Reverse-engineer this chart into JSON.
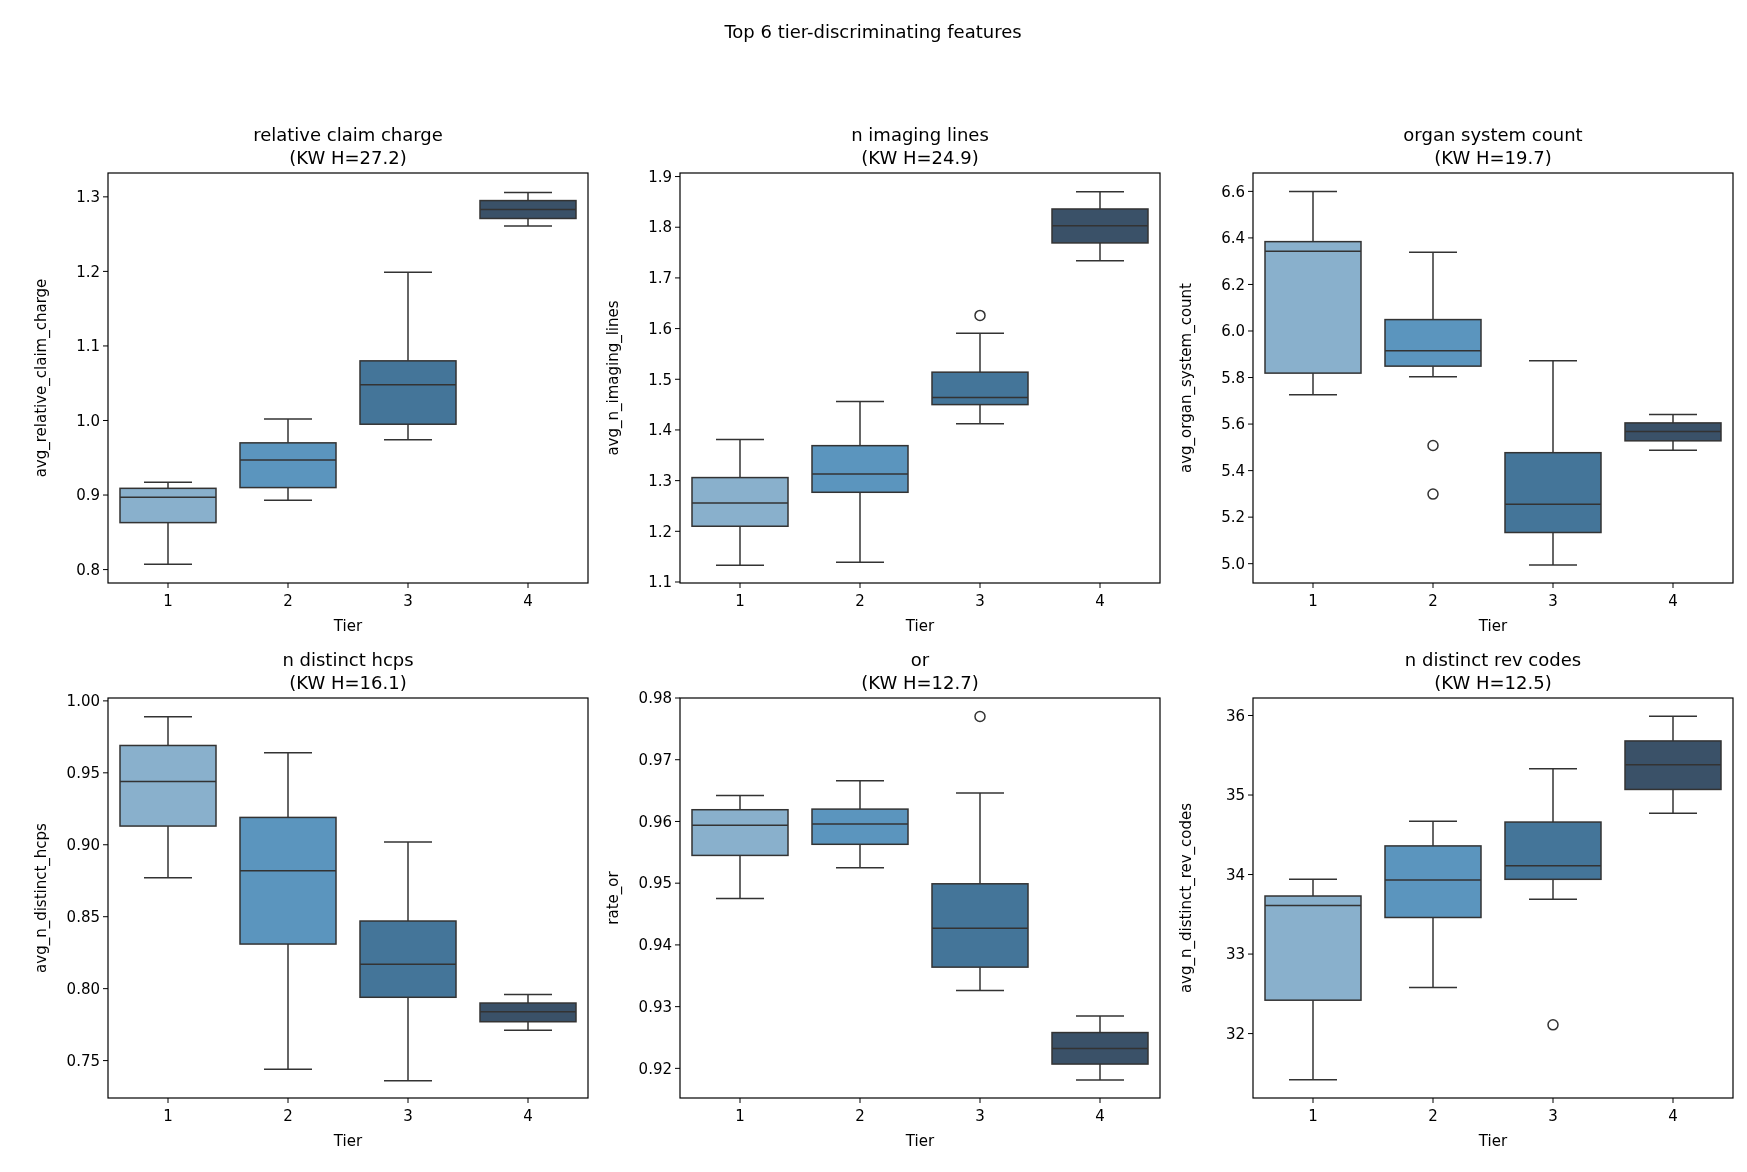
{
  "chart_data": [
    {
      "type": "box",
      "title": "relative claim charge",
      "subtitle": "(KW H=27.2)",
      "xlabel": "Tier",
      "ylabel": "avg_relative_claim_charge",
      "annotations": [
        "Top 6 tier-discriminating features"
      ],
      "categories": [
        "1",
        "2",
        "3",
        "4"
      ],
      "colors": [
        "#89b0cc",
        "#5b95be",
        "#447599",
        "#3a5168"
      ],
      "ylim": [
        0.782,
        1.332
      ],
      "yticks": [
        {
          "value": 0.8,
          "label": "0.8"
        },
        {
          "value": 0.9,
          "label": "0.9"
        },
        {
          "value": 1.0,
          "label": "1.0"
        },
        {
          "value": 1.1,
          "label": "1.1"
        },
        {
          "value": 1.2,
          "label": "1.2"
        },
        {
          "value": 1.3,
          "label": "1.3"
        }
      ],
      "grid": false,
      "boxes": [
        {
          "low": 0.807,
          "q1": 0.863,
          "median": 0.897,
          "q3": 0.909,
          "high": 0.917
        },
        {
          "low": 0.893,
          "q1": 0.91,
          "median": 0.947,
          "q3": 0.97,
          "high": 1.002
        },
        {
          "low": 0.974,
          "q1": 0.995,
          "median": 1.048,
          "q3": 1.08,
          "high": 1.199
        },
        {
          "low": 1.261,
          "q1": 1.271,
          "median": 1.283,
          "q3": 1.295,
          "high": 1.306
        }
      ]
    },
    {
      "type": "box",
      "title": "n imaging lines",
      "subtitle": "(KW H=24.9)",
      "xlabel": "Tier",
      "ylabel": "avg_n_imaging_lines",
      "categories": [
        "1",
        "2",
        "3",
        "4"
      ],
      "colors": [
        "#89b0cc",
        "#5b95be",
        "#447599",
        "#3a5168"
      ],
      "ylim": [
        1.098,
        1.907
      ],
      "yticks": [
        1.1,
        1.2,
        1.3,
        1.4,
        1.5,
        1.6,
        1.7,
        1.8,
        1.9
      ],
      "grid": false,
      "boxes": [
        {
          "low": 1.133,
          "q1": 1.21,
          "median": 1.256,
          "q3": 1.306,
          "high": 1.381
        },
        {
          "low": 1.139,
          "q1": 1.277,
          "median": 1.313,
          "q3": 1.369,
          "high": 1.456
        },
        {
          "low": 1.412,
          "q1": 1.45,
          "median": 1.464,
          "q3": 1.514,
          "high": 1.591,
          "outliers": [
            1.626
          ]
        },
        {
          "low": 1.734,
          "q1": 1.769,
          "median": 1.803,
          "q3": 1.836,
          "high": 1.87
        }
      ]
    },
    {
      "type": "box",
      "title": "organ system count",
      "subtitle": "(KW H=19.7)",
      "xlabel": "Tier",
      "ylabel": "avg_organ_system_count",
      "categories": [
        "1",
        "2",
        "3",
        "4"
      ],
      "colors": [
        "#89b0cc",
        "#5b95be",
        "#447599",
        "#3a5168"
      ],
      "ylim": [
        4.917,
        6.679
      ],
      "yticks": [
        {
          "value": 5.0,
          "label": "5.0"
        },
        {
          "value": 5.2,
          "label": "5.2"
        },
        {
          "value": 5.4,
          "label": "5.4"
        },
        {
          "value": 5.6,
          "label": "5.6"
        },
        {
          "value": 5.8,
          "label": "5.8"
        },
        {
          "value": 6.0,
          "label": "6.0"
        },
        {
          "value": 6.2,
          "label": "6.2"
        },
        {
          "value": 6.4,
          "label": "6.4"
        },
        {
          "value": 6.6,
          "label": "6.6"
        }
      ],
      "grid": false,
      "boxes": [
        {
          "low": 5.726,
          "q1": 5.819,
          "median": 6.343,
          "q3": 6.384,
          "high": 6.6
        },
        {
          "low": 5.803,
          "q1": 5.849,
          "median": 5.915,
          "q3": 6.049,
          "high": 6.338,
          "outliers": [
            5.508,
            5.299
          ]
        },
        {
          "low": 4.994,
          "q1": 5.134,
          "median": 5.255,
          "q3": 5.477,
          "high": 5.872
        },
        {
          "low": 5.487,
          "q1": 5.528,
          "median": 5.568,
          "q3": 5.605,
          "high": 5.641
        }
      ]
    },
    {
      "type": "box",
      "title": "n distinct hcps",
      "subtitle": "(KW H=16.1)",
      "xlabel": "Tier",
      "ylabel": "avg_n_distinct_hcps",
      "categories": [
        "1",
        "2",
        "3",
        "4"
      ],
      "colors": [
        "#89b0cc",
        "#5b95be",
        "#447599",
        "#3a5168"
      ],
      "ylim": [
        0.724,
        1.002
      ],
      "yticks": [
        0.75,
        {
          "value": 0.8,
          "label": "0.80"
        },
        0.85,
        {
          "value": 0.9,
          "label": "0.90"
        },
        0.95,
        {
          "value": 1.0,
          "label": "1.00"
        }
      ],
      "grid": false,
      "boxes": [
        {
          "low": 0.877,
          "q1": 0.913,
          "median": 0.944,
          "q3": 0.969,
          "high": 0.989
        },
        {
          "low": 0.744,
          "q1": 0.831,
          "median": 0.882,
          "q3": 0.919,
          "high": 0.964
        },
        {
          "low": 0.736,
          "q1": 0.794,
          "median": 0.817,
          "q3": 0.847,
          "high": 0.902
        },
        {
          "low": 0.771,
          "q1": 0.777,
          "median": 0.784,
          "q3": 0.79,
          "high": 0.796
        }
      ]
    },
    {
      "type": "box",
      "title": "or",
      "subtitle": "(KW H=12.7)",
      "xlabel": "Tier",
      "ylabel": "rate_or",
      "categories": [
        "1",
        "2",
        "3",
        "4"
      ],
      "colors": [
        "#89b0cc",
        "#5b95be",
        "#447599",
        "#3a5168"
      ],
      "ylim": [
        0.9152,
        0.98
      ],
      "yticks": [
        0.92,
        0.93,
        0.94,
        0.95,
        0.96,
        0.97,
        0.98
      ],
      "grid": false,
      "boxes": [
        {
          "low": 0.9475,
          "q1": 0.9545,
          "median": 0.9594,
          "q3": 0.9619,
          "high": 0.9642
        },
        {
          "low": 0.9525,
          "q1": 0.9563,
          "median": 0.9596,
          "q3": 0.962,
          "high": 0.9666
        },
        {
          "low": 0.9326,
          "q1": 0.9364,
          "median": 0.9427,
          "q3": 0.9499,
          "high": 0.9646,
          "outliers": [
            0.977
          ]
        },
        {
          "low": 0.9181,
          "q1": 0.9207,
          "median": 0.9232,
          "q3": 0.9258,
          "high": 0.9285
        }
      ]
    },
    {
      "type": "box",
      "title": "n distinct rev codes",
      "subtitle": "(KW H=12.5)",
      "xlabel": "Tier",
      "ylabel": "avg_n_distinct_rev_codes",
      "categories": [
        "1",
        "2",
        "3",
        "4"
      ],
      "colors": [
        "#89b0cc",
        "#5b95be",
        "#447599",
        "#3a5168"
      ],
      "ylim": [
        31.19,
        36.22
      ],
      "yticks": [
        32,
        33,
        34,
        35,
        36
      ],
      "grid": false,
      "boxes": [
        {
          "low": 31.42,
          "q1": 32.42,
          "median": 33.61,
          "q3": 33.73,
          "high": 33.94
        },
        {
          "low": 32.58,
          "q1": 33.46,
          "median": 33.93,
          "q3": 34.36,
          "high": 34.67
        },
        {
          "low": 33.69,
          "q1": 33.94,
          "median": 34.11,
          "q3": 34.66,
          "high": 35.33,
          "outliers": [
            32.11
          ]
        },
        {
          "low": 34.77,
          "q1": 35.07,
          "median": 35.38,
          "q3": 35.68,
          "high": 35.99
        }
      ]
    }
  ]
}
